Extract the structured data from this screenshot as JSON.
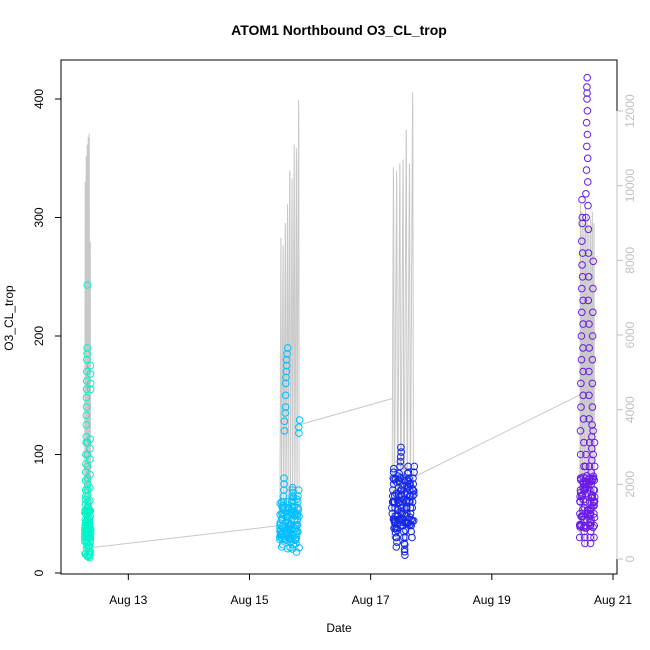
{
  "chart_data": {
    "type": "scatter",
    "title": "ATOM1 Northbound O3_CL_trop",
    "xlabel": "Date",
    "ylabel": "O3_CL_trop",
    "x_ticks": [
      "Aug 13",
      "Aug 15",
      "Aug 17",
      "Aug 19",
      "Aug 21"
    ],
    "x_tick_days": [
      13,
      15,
      17,
      19,
      21
    ],
    "xlim_days": [
      12.1,
      21.2
    ],
    "y_ticks": [
      0,
      100,
      200,
      300,
      400
    ],
    "ylim": [
      0,
      430
    ],
    "y2_ticks": [
      0,
      2000,
      4000,
      6000,
      8000,
      10000,
      12000
    ],
    "y2lim": [
      -300,
      13100
    ],
    "grid": false,
    "legend": "none",
    "colors": {
      "flight1": "#00f5c8",
      "flight2": "#00bfff",
      "flight3": "#1428e6",
      "flight4": "#6a1be6",
      "altitude_line": "#c8c8c8"
    },
    "flights": [
      {
        "day_start": 12.28,
        "day_end": 12.38,
        "color_key": "flight1",
        "o3_base": 35,
        "o3_values": [
          33,
          30,
          36,
          38,
          40,
          45,
          52,
          58,
          62,
          65,
          70,
          78,
          85,
          92,
          100,
          110,
          115,
          125,
          133,
          140,
          148,
          155,
          162,
          170,
          180,
          185,
          190,
          243,
          110,
          100,
          90,
          80,
          75,
          70,
          65,
          60,
          55,
          50,
          45,
          40,
          38,
          35,
          32,
          30,
          34,
          37,
          40,
          42,
          44,
          36,
          31,
          29,
          33,
          39,
          46,
          53,
          61,
          72,
          83,
          96,
          105,
          113,
          175,
          168,
          160,
          155
        ],
        "alt_peaks": [
          10100,
          10800,
          11100,
          11300,
          11400,
          8500
        ]
      },
      {
        "day_start": 15.5,
        "day_end": 15.83,
        "color_key": "flight2",
        "o3_base": 40,
        "o3_values": [
          35,
          38,
          40,
          42,
          36,
          33,
          30,
          34,
          39,
          45,
          50,
          55,
          60,
          65,
          70,
          75,
          80,
          120,
          128,
          135,
          140,
          150,
          160,
          165,
          170,
          175,
          180,
          185,
          190,
          60,
          55,
          48,
          42,
          38,
          34,
          30,
          28,
          26,
          29,
          33,
          37,
          41,
          45,
          50,
          55,
          60,
          65,
          70,
          72,
          68,
          64,
          60,
          56,
          52,
          48,
          44,
          40,
          36,
          32,
          28,
          25,
          30,
          35,
          40,
          45,
          50,
          55,
          60,
          65,
          70,
          118,
          123,
          129
        ],
        "alt_peaks": [
          8600,
          8400,
          9000,
          9500,
          10400,
          10200,
          11100,
          11000,
          12300
        ]
      },
      {
        "day_start": 17.35,
        "day_end": 17.72,
        "color_key": "flight3",
        "o3_base": 60,
        "o3_values": [
          50,
          55,
          60,
          65,
          70,
          75,
          80,
          85,
          88,
          60,
          55,
          48,
          42,
          38,
          34,
          30,
          26,
          22,
          30,
          36,
          42,
          48,
          54,
          60,
          66,
          72,
          78,
          84,
          90,
          94,
          98,
          102,
          106,
          70,
          65,
          60,
          55,
          50,
          45,
          40,
          35,
          30,
          25,
          20,
          15,
          18,
          24,
          30,
          36,
          42,
          48,
          54,
          60,
          66,
          72,
          78,
          84,
          90,
          85,
          80,
          75,
          70,
          65,
          60,
          55,
          50,
          45,
          40,
          35,
          30,
          55,
          60,
          65,
          70,
          75,
          80,
          85,
          90
        ],
        "alt_peaks": [
          10500,
          10400,
          10600,
          10700,
          11500,
          10600,
          12500
        ]
      },
      {
        "day_start": 20.45,
        "day_end": 20.7,
        "color_key": "flight4",
        "o3_base": 60,
        "o3_values": [
          30,
          40,
          50,
          60,
          70,
          80,
          100,
          120,
          140,
          160,
          180,
          200,
          220,
          240,
          260,
          280,
          300,
          315,
          295,
          270,
          250,
          230,
          210,
          190,
          170,
          150,
          130,
          110,
          90,
          70,
          55,
          45,
          35,
          25,
          30,
          40,
          50,
          60,
          70,
          80,
          90,
          100,
          300,
          320,
          340,
          360,
          380,
          400,
          410,
          418,
          405,
          390,
          370,
          350,
          330,
          310,
          290,
          270,
          250,
          230,
          210,
          190,
          170,
          150,
          130,
          110,
          90,
          70,
          60,
          50,
          40,
          30,
          25,
          35,
          45,
          55,
          65,
          75,
          85,
          95,
          105,
          115,
          125,
          140,
          160,
          180,
          200,
          220,
          240,
          263,
          120,
          100,
          80,
          60,
          40,
          30,
          50,
          70,
          90,
          110
        ],
        "alt_peaks": [
          9500,
          9300,
          9000,
          9400,
          9200,
          8900,
          9100,
          9300,
          9000
        ]
      }
    ],
    "alt_connectors": [
      {
        "from_day": 12.38,
        "from_alt": 300,
        "to_day": 15.52,
        "to_alt": 900
      },
      {
        "from_day": 15.83,
        "from_alt": 3600,
        "to_day": 17.36,
        "to_alt": 4300
      },
      {
        "from_day": 17.72,
        "from_alt": 2200,
        "to_day": 20.46,
        "to_alt": 4400
      }
    ]
  }
}
